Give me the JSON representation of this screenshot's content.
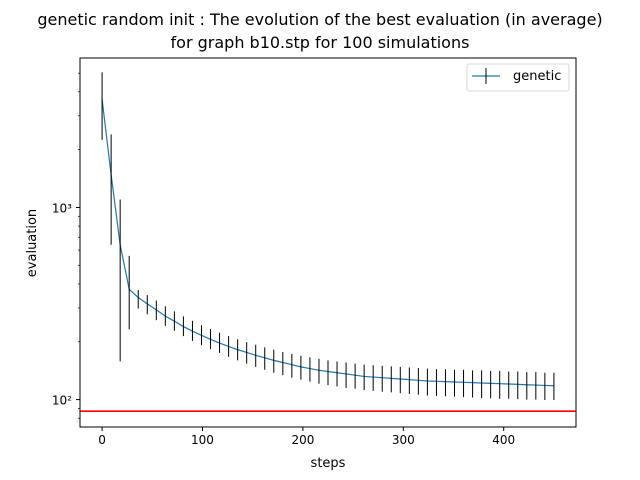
{
  "chart_data": {
    "type": "line",
    "title": "genetic random init : The evolution of the best evaluation (in average)",
    "subtitle": "for graph b10.stp for 100 simulations",
    "xlabel": "steps",
    "ylabel": "evaluation",
    "yscale": "log",
    "xlim": [
      -22,
      472
    ],
    "ylim": [
      72,
      6000
    ],
    "xticks": [
      0,
      100,
      200,
      300,
      400
    ],
    "yticks": [
      100,
      1000
    ],
    "ytick_labels": [
      "10²",
      "10³"
    ],
    "legend_position": "top-right",
    "grid": false,
    "series": [
      {
        "name": "genetic",
        "color": "#1f77b4",
        "x": [
          0,
          9,
          18,
          27,
          36,
          45,
          54,
          63,
          72,
          81,
          90,
          99,
          108,
          117,
          126,
          135,
          144,
          153,
          162,
          171,
          180,
          189,
          198,
          207,
          216,
          225,
          234,
          243,
          252,
          261,
          270,
          279,
          288,
          297,
          306,
          315,
          324,
          333,
          342,
          351,
          360,
          369,
          378,
          387,
          396,
          405,
          414,
          423,
          432,
          441,
          450
        ],
        "y": [
          3650,
          1480,
          640,
          375,
          340,
          315,
          293,
          272,
          256,
          240,
          227,
          216,
          206,
          197,
          189,
          182,
          176,
          170,
          165,
          160,
          156,
          152,
          148,
          145,
          142,
          140,
          138,
          136,
          134,
          132,
          131,
          130,
          129,
          128,
          127,
          126,
          125,
          124.5,
          124,
          123.5,
          123,
          122.5,
          122,
          121.5,
          121,
          120.5,
          120,
          119.5,
          119,
          118.5,
          118
        ],
        "err_low": [
          2250,
          640,
          158,
          232,
          298,
          278,
          259,
          242,
          228,
          214,
          202,
          192,
          183,
          175,
          167,
          160,
          154,
          148,
          143,
          138,
          134,
          130,
          127,
          124,
          121,
          119,
          117,
          115,
          114,
          112,
          111,
          110,
          109,
          108,
          107,
          106,
          105,
          104.5,
          104,
          103.5,
          103,
          102.5,
          102,
          101.5,
          101,
          101,
          100.5,
          100,
          100,
          99.5,
          99.5
        ],
        "err_high": [
          5050,
          2400,
          1100,
          560,
          372,
          350,
          328,
          306,
          288,
          271,
          257,
          244,
          233,
          223,
          214,
          206,
          199,
          193,
          187,
          182,
          177,
          173,
          169,
          166,
          163,
          160,
          158,
          156,
          154,
          152,
          151,
          150,
          149,
          148,
          147,
          146,
          145,
          144,
          144,
          143,
          143,
          142,
          142,
          141,
          141,
          140,
          140,
          139,
          139,
          138,
          138
        ]
      }
    ],
    "reference_line": {
      "y": 87,
      "color": "#ff0000"
    }
  }
}
